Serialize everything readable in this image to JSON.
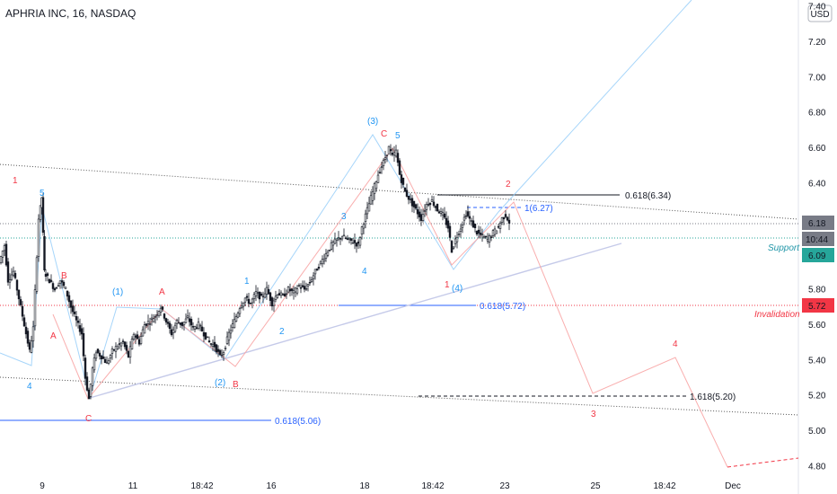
{
  "header": {
    "symbol_title": "APHRIA INC, 16, NASDAQ",
    "currency": "USD"
  },
  "chart_data": {
    "type": "candlestick",
    "title": "APHRIA INC, 16, NASDAQ",
    "ylim": [
      4.8,
      7.4
    ],
    "y_ticks": [
      "4.80",
      "5.00",
      "5.20",
      "5.40",
      "5.60",
      "5.80",
      "6.00",
      "6.20",
      "6.40",
      "6.60",
      "6.80",
      "7.00",
      "7.20",
      "7.40"
    ],
    "x_ticks": [
      "9",
      "11",
      "18:42",
      "16",
      "18",
      "18:42",
      "23",
      "25",
      "18:42",
      "Dec"
    ],
    "price_badges": [
      {
        "label": "6.18",
        "color": "#787b86"
      },
      {
        "label": "10:44",
        "color": "#787b86"
      },
      {
        "label": "6.09",
        "color": "#26a69a"
      },
      {
        "label": "5.72",
        "color": "#f23645"
      }
    ],
    "annotations": [
      {
        "text": "0.618(6.34)",
        "color": "#131722"
      },
      {
        "text": "1(6.27)",
        "color": "#2962ff"
      },
      {
        "text": "0.618(5.72)",
        "color": "#2962ff"
      },
      {
        "text": "1.618(5.20)",
        "color": "#131722"
      },
      {
        "text": "0.618(5.06)",
        "color": "#2962ff"
      },
      {
        "text": "Support",
        "color": "#2196a8"
      },
      {
        "text": "Invalidation",
        "color": "#f23645"
      }
    ],
    "wave_labels": [
      {
        "text": "1",
        "color": "#f23645"
      },
      {
        "text": "5",
        "color": "#2196f3"
      },
      {
        "text": "B",
        "color": "#f23645"
      },
      {
        "text": "A",
        "color": "#f23645"
      },
      {
        "text": "4",
        "color": "#2196f3"
      },
      {
        "text": "C",
        "color": "#f23645"
      },
      {
        "text": "(1)",
        "color": "#2196f3"
      },
      {
        "text": "A",
        "color": "#f23645"
      },
      {
        "text": "(2)",
        "color": "#2196f3"
      },
      {
        "text": "B",
        "color": "#f23645"
      },
      {
        "text": "1",
        "color": "#2196f3"
      },
      {
        "text": "2",
        "color": "#2196f3"
      },
      {
        "text": "3",
        "color": "#2196f3"
      },
      {
        "text": "4",
        "color": "#2196f3"
      },
      {
        "text": "(3)",
        "color": "#2196f3"
      },
      {
        "text": "C",
        "color": "#f23645"
      },
      {
        "text": "5",
        "color": "#2196f3"
      },
      {
        "text": "1",
        "color": "#f23645"
      },
      {
        "text": "(4)",
        "color": "#2196f3"
      },
      {
        "text": "2",
        "color": "#f23645"
      },
      {
        "text": "3",
        "color": "#f23645"
      },
      {
        "text": "4",
        "color": "#f23645"
      }
    ],
    "price_path": [
      [
        0,
        5.95
      ],
      [
        6,
        6.05
      ],
      [
        10,
        5.85
      ],
      [
        16,
        5.9
      ],
      [
        22,
        5.75
      ],
      [
        28,
        5.6
      ],
      [
        34,
        5.45
      ],
      [
        38,
        5.58
      ],
      [
        44,
        6.2
      ],
      [
        47,
        6.32
      ],
      [
        50,
        5.9
      ],
      [
        56,
        5.85
      ],
      [
        62,
        5.8
      ],
      [
        68,
        5.85
      ],
      [
        74,
        5.8
      ],
      [
        80,
        5.7
      ],
      [
        86,
        5.62
      ],
      [
        92,
        5.55
      ],
      [
        96,
        5.3
      ],
      [
        100,
        5.18
      ],
      [
        104,
        5.35
      ],
      [
        108,
        5.45
      ],
      [
        114,
        5.42
      ],
      [
        120,
        5.38
      ],
      [
        126,
        5.45
      ],
      [
        132,
        5.48
      ],
      [
        138,
        5.5
      ],
      [
        144,
        5.42
      ],
      [
        150,
        5.55
      ],
      [
        156,
        5.5
      ],
      [
        162,
        5.6
      ],
      [
        168,
        5.62
      ],
      [
        174,
        5.65
      ],
      [
        180,
        5.7
      ],
      [
        186,
        5.62
      ],
      [
        192,
        5.55
      ],
      [
        198,
        5.62
      ],
      [
        204,
        5.6
      ],
      [
        210,
        5.64
      ],
      [
        216,
        5.58
      ],
      [
        222,
        5.6
      ],
      [
        228,
        5.55
      ],
      [
        234,
        5.5
      ],
      [
        240,
        5.48
      ],
      [
        246,
        5.42
      ],
      [
        250,
        5.45
      ],
      [
        256,
        5.55
      ],
      [
        262,
        5.62
      ],
      [
        268,
        5.7
      ],
      [
        274,
        5.75
      ],
      [
        280,
        5.72
      ],
      [
        286,
        5.78
      ],
      [
        292,
        5.75
      ],
      [
        298,
        5.8
      ],
      [
        304,
        5.72
      ],
      [
        310,
        5.78
      ],
      [
        316,
        5.76
      ],
      [
        322,
        5.8
      ],
      [
        328,
        5.78
      ],
      [
        334,
        5.82
      ],
      [
        340,
        5.8
      ],
      [
        346,
        5.84
      ],
      [
        352,
        5.9
      ],
      [
        358,
        5.95
      ],
      [
        364,
        6.0
      ],
      [
        370,
        6.05
      ],
      [
        376,
        6.08
      ],
      [
        382,
        6.1
      ],
      [
        388,
        6.08
      ],
      [
        394,
        6.07
      ],
      [
        400,
        6.05
      ],
      [
        404,
        6.15
      ],
      [
        410,
        6.25
      ],
      [
        416,
        6.35
      ],
      [
        422,
        6.45
      ],
      [
        428,
        6.52
      ],
      [
        434,
        6.6
      ],
      [
        438,
        6.55
      ],
      [
        442,
        6.58
      ],
      [
        446,
        6.45
      ],
      [
        452,
        6.35
      ],
      [
        458,
        6.3
      ],
      [
        464,
        6.25
      ],
      [
        470,
        6.2
      ],
      [
        476,
        6.28
      ],
      [
        482,
        6.3
      ],
      [
        488,
        6.25
      ],
      [
        494,
        6.22
      ],
      [
        500,
        6.15
      ],
      [
        504,
        6.02
      ],
      [
        508,
        6.08
      ],
      [
        514,
        6.15
      ],
      [
        520,
        6.23
      ],
      [
        526,
        6.18
      ],
      [
        532,
        6.12
      ],
      [
        538,
        6.1
      ],
      [
        544,
        6.08
      ],
      [
        550,
        6.12
      ],
      [
        556,
        6.15
      ],
      [
        560,
        6.2
      ],
      [
        564,
        6.22
      ],
      [
        568,
        6.18
      ]
    ]
  }
}
